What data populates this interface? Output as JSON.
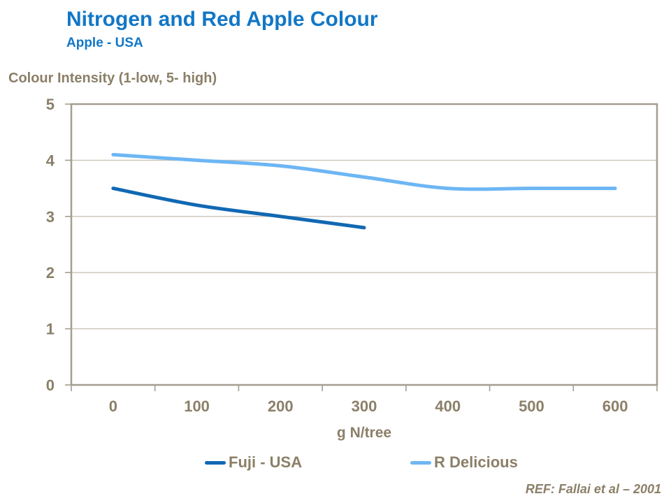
{
  "header": {
    "title": "Nitrogen and Red Apple Colour",
    "subtitle": "Apple - USA"
  },
  "chart_data": {
    "type": "line",
    "y_axis_title": "Colour Intensity (1-low, 5- high)",
    "x_axis_title": "g N/tree",
    "categories": [
      0,
      100,
      200,
      300,
      400,
      500,
      600
    ],
    "xtick_labels": [
      "0",
      "100",
      "200",
      "300",
      "400",
      "500",
      "600"
    ],
    "ytick_labels": [
      "0",
      "1",
      "2",
      "3",
      "4",
      "5"
    ],
    "ylim": [
      0,
      5
    ],
    "grid": "horizontal",
    "legend_position": "bottom",
    "series": [
      {
        "name": "Fuji - USA",
        "color": "#1168b3",
        "values": [
          3.5,
          3.2,
          3.0,
          2.8,
          null,
          null,
          null
        ]
      },
      {
        "name": "R Delicious",
        "color": "#6db6f4",
        "values": [
          4.1,
          4.0,
          3.9,
          3.7,
          3.5,
          3.5,
          3.5
        ]
      }
    ]
  },
  "footer": {
    "reference": "REF: Fallai et al – 2001"
  },
  "colors": {
    "title_blue": "#1277c6",
    "text_taupe": "#8b7f68",
    "axis_frame": "#a49d90",
    "gridline": "#c9c3b8"
  }
}
